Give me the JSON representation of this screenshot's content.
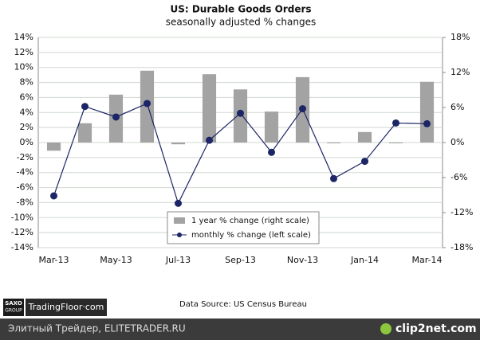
{
  "chart_data": {
    "type": "bar-line",
    "title": "US: Durable Goods Orders",
    "subtitle": "seasonally adjusted % changes",
    "categories": [
      "Mar-13",
      null,
      "May-13",
      null,
      "Jul-13",
      null,
      "Sep-13",
      null,
      "Nov-13",
      null,
      "Jan-14",
      null,
      "Mar-14"
    ],
    "series": [
      {
        "name": "1 year % change (right scale)",
        "type": "bar",
        "axis": "y2",
        "color": "#a3a3a3",
        "values": [
          -1.4,
          3.3,
          8.2,
          12.3,
          -0.3,
          11.7,
          9.1,
          5.3,
          11.2,
          -0.1,
          1.8,
          -0.1,
          10.4
        ]
      },
      {
        "name": "monthly % change (left scale)",
        "type": "line",
        "axis": "y",
        "color": "#1c2566",
        "values": [
          -7.1,
          4.8,
          3.4,
          5.2,
          -8.1,
          0.3,
          3.9,
          -1.3,
          4.5,
          -4.8,
          -2.5,
          2.6,
          2.5
        ]
      }
    ],
    "ylim": [
      -14,
      14
    ],
    "yticks": [
      {
        "value": -14,
        "label": "-14%"
      },
      {
        "value": -12,
        "label": "-12%"
      },
      {
        "value": -10,
        "label": "-10%"
      },
      {
        "value": -8,
        "label": "-8%"
      },
      {
        "value": -6,
        "label": "-6%"
      },
      {
        "value": -4,
        "label": "-4%"
      },
      {
        "value": -2,
        "label": "-2%"
      },
      {
        "value": 0,
        "label": "0%"
      },
      {
        "value": 2,
        "label": "2%"
      },
      {
        "value": 4,
        "label": "4%"
      },
      {
        "value": 6,
        "label": "6%"
      },
      {
        "value": 8,
        "label": "8%"
      },
      {
        "value": 10,
        "label": "10%"
      },
      {
        "value": 12,
        "label": "12%"
      },
      {
        "value": 14,
        "label": "14%"
      }
    ],
    "y2lim": [
      -18,
      18
    ],
    "y2ticks": [
      {
        "value": -18,
        "label": "-18%"
      },
      {
        "value": -12,
        "label": "-12%"
      },
      {
        "value": -6,
        "label": "-6%"
      },
      {
        "value": 0,
        "label": "0%"
      },
      {
        "value": 6,
        "label": "6%"
      },
      {
        "value": 12,
        "label": "12%"
      },
      {
        "value": 18,
        "label": "18%"
      }
    ],
    "grid": true,
    "legend": "bottom-center"
  },
  "footer": {
    "logo_top": "SAXO",
    "logo_bottom": "GROUP",
    "brand": "TradingFloor·com",
    "source": "Data Source: US Census Bureau",
    "watermark_left": "Элитный Трейдер, ELITETRADER.RU",
    "watermark_right": "clip2net.com"
  }
}
